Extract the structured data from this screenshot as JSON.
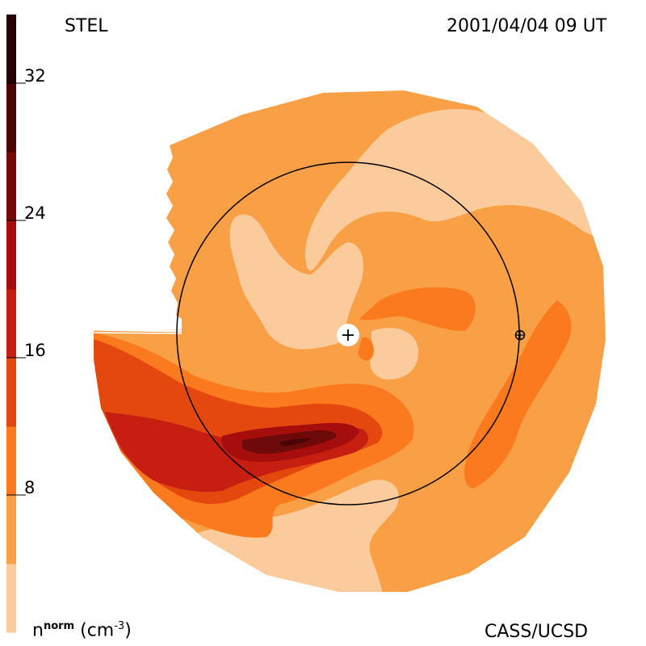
{
  "header": {
    "left_label": "STEL",
    "right_label": "2001/04/04 09 UT"
  },
  "footer": {
    "units_base": "n",
    "units_sup": "norm",
    "units_rest": "(cm",
    "units_exp": "-3",
    "units_close": ")",
    "credit": "CASS/UCSD"
  },
  "colorbar": {
    "ticks": [
      "32",
      "24",
      "16",
      "8"
    ],
    "tick_values": [
      32,
      24,
      16,
      8
    ],
    "range": [
      0,
      36
    ],
    "bands": [
      {
        "from": 0,
        "to": 4,
        "color": "#fbcb9c"
      },
      {
        "from": 4,
        "to": 8,
        "color": "#f99f45"
      },
      {
        "from": 8,
        "to": 12,
        "color": "#fb7a1e"
      },
      {
        "from": 12,
        "to": 16,
        "color": "#e5480f"
      },
      {
        "from": 16,
        "to": 20,
        "color": "#c61e10"
      },
      {
        "from": 20,
        "to": 24,
        "color": "#a60d0d"
      },
      {
        "from": 24,
        "to": 28,
        "color": "#760808"
      },
      {
        "from": 28,
        "to": 32,
        "color": "#4a0404"
      },
      {
        "from": 32,
        "to": 36,
        "color": "#260202"
      }
    ]
  },
  "map": {
    "colors": {
      "level1": "#fbcb9c",
      "level2": "#f99f45",
      "level3": "#fb7a1e",
      "level4": "#e5480f",
      "level5": "#c61e10",
      "level6": "#a60d0d",
      "level7": "#6e0a0a"
    },
    "sun_marker_icon": "plus-circle-icon",
    "earth_marker_icon": "circle-plus-icon"
  }
}
